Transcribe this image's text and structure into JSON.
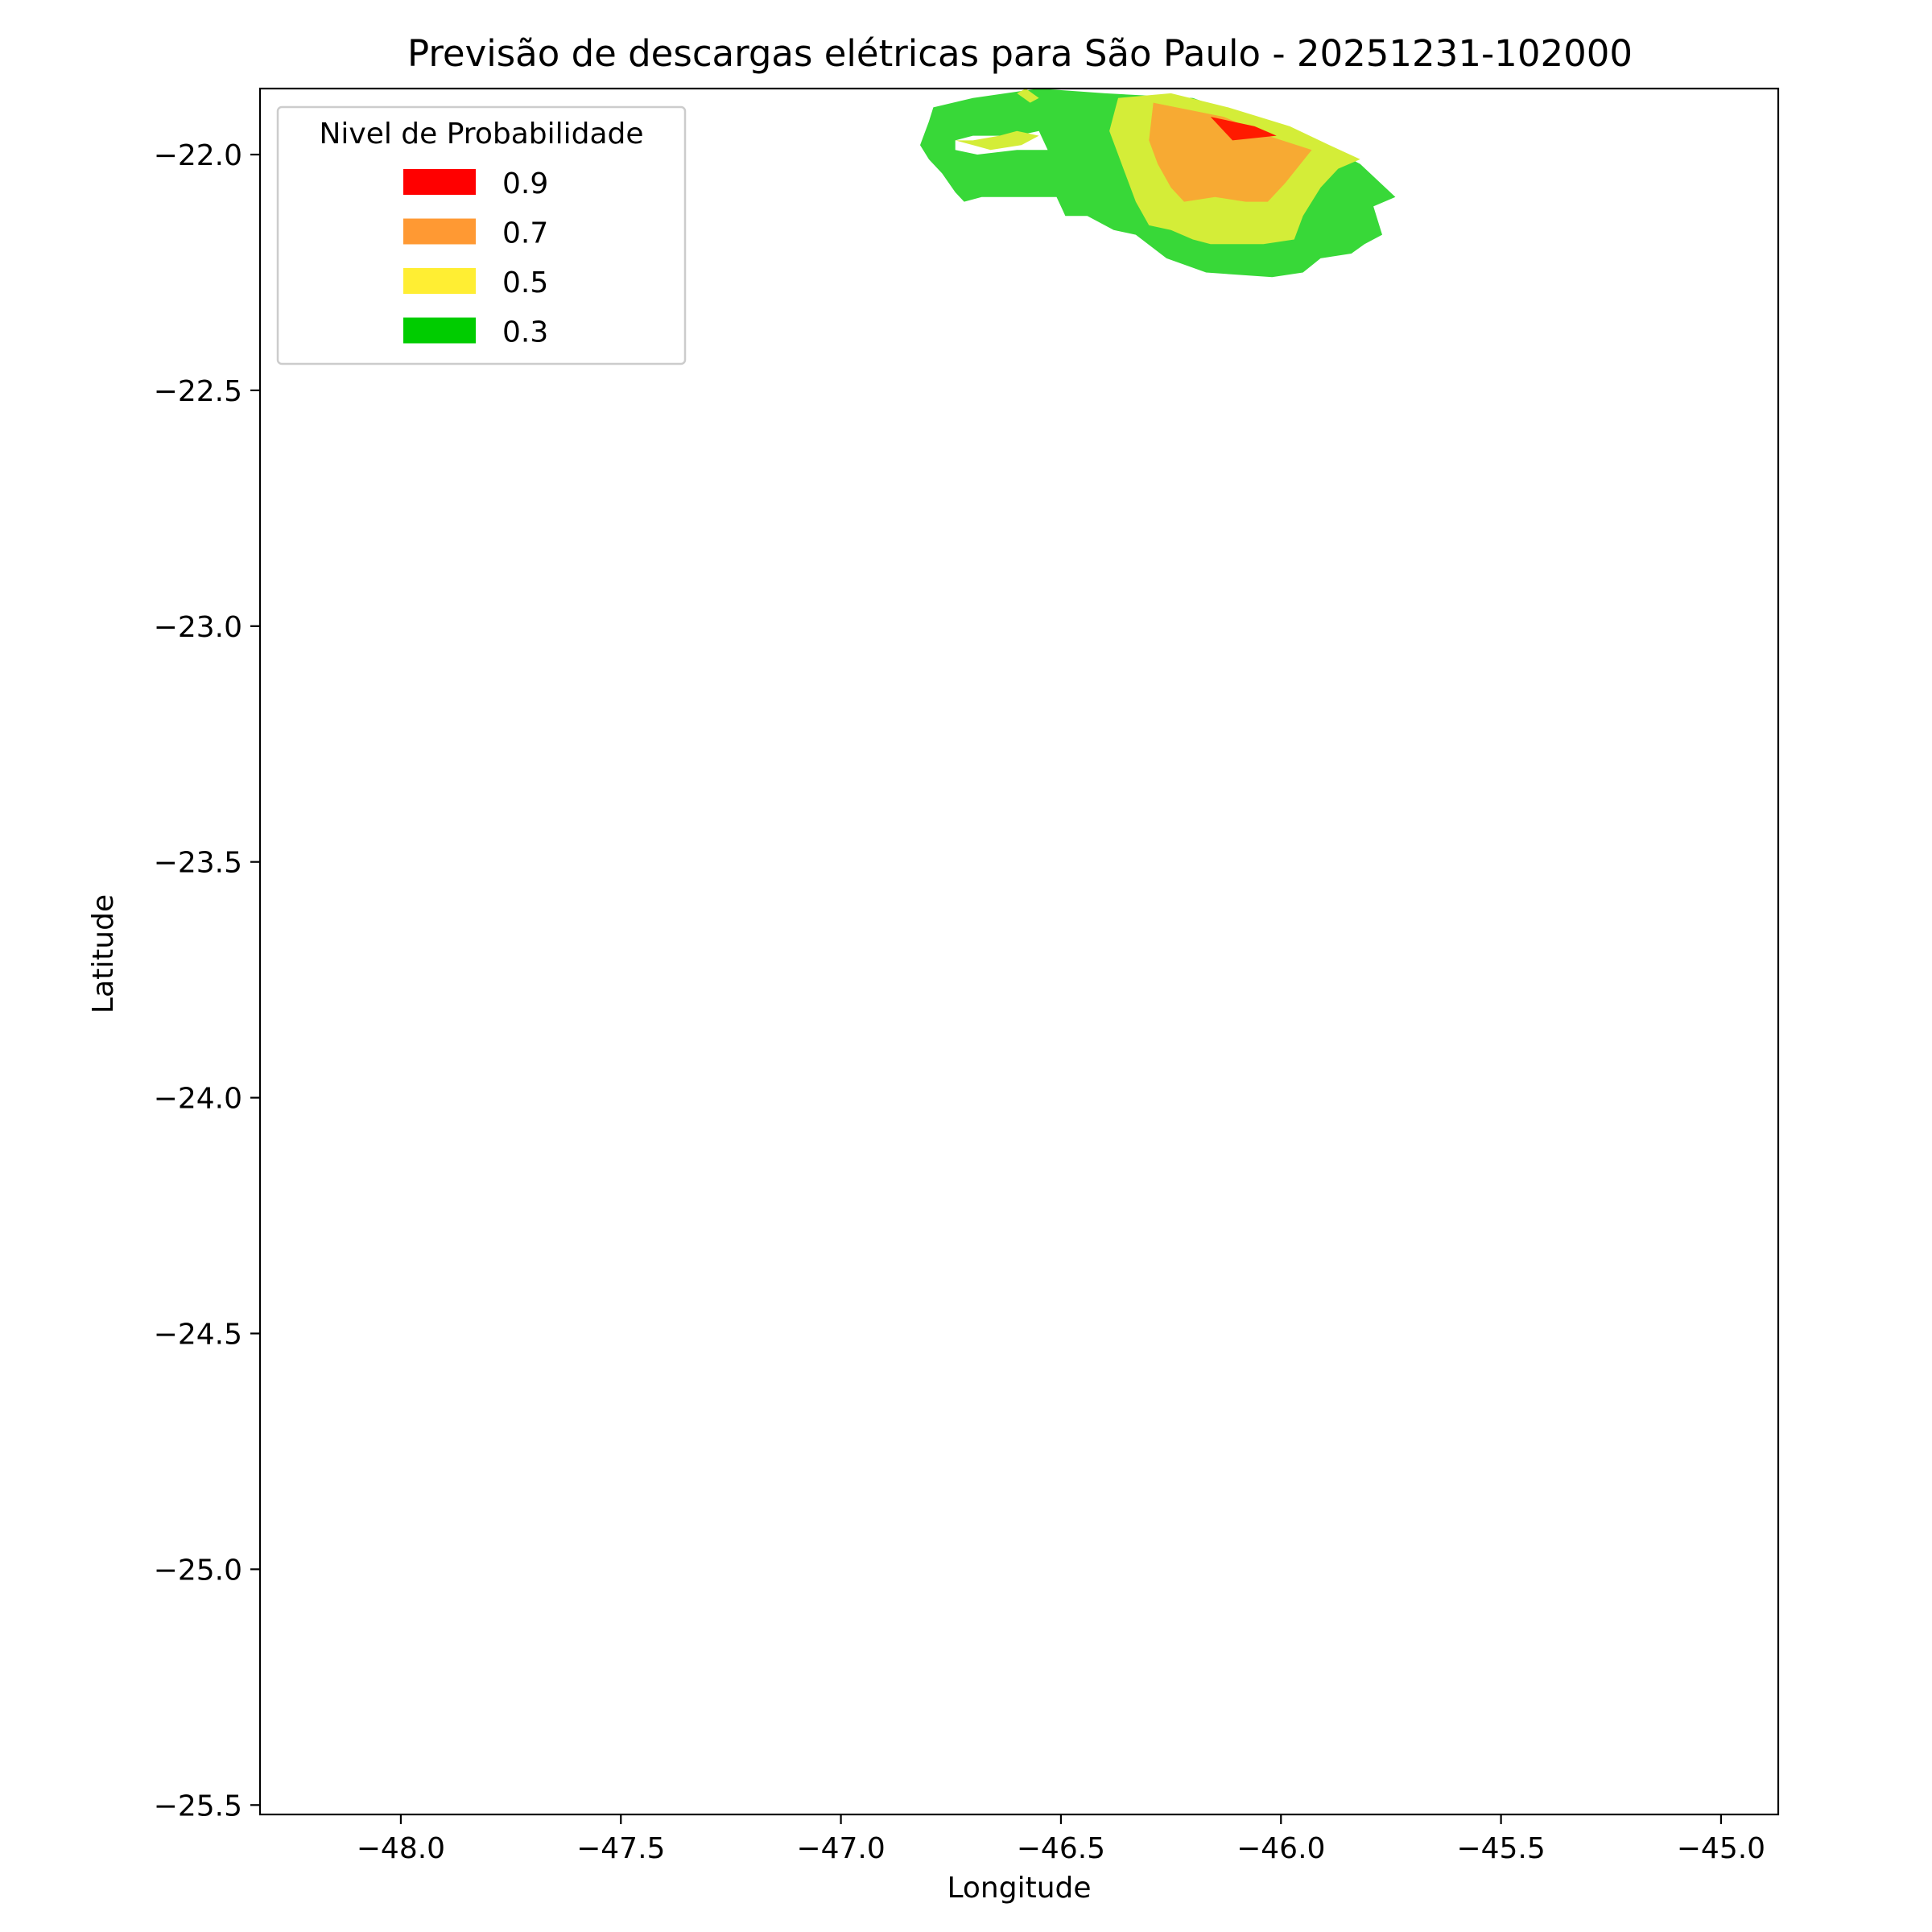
{
  "chart_data": {
    "type": "contour_map",
    "title": "Previsão de descargas elétricas para São Paulo - 20251231-102000",
    "xlabel": "Longitude",
    "ylabel": "Latitude",
    "xlim": [
      -48.32,
      -44.87
    ],
    "ylim": [
      -25.52,
      -21.86
    ],
    "x_ticks": [
      -48.0,
      -47.5,
      -47.0,
      -46.5,
      -46.0,
      -45.5,
      -45.0
    ],
    "x_tick_labels": [
      "−48.0",
      "−47.5",
      "−47.0",
      "−46.5",
      "−46.0",
      "−45.5",
      "−45.0"
    ],
    "y_ticks": [
      -22.0,
      -22.5,
      -23.0,
      -23.5,
      -24.0,
      -24.5,
      -25.0,
      -25.5
    ],
    "y_tick_labels": [
      "−22.0",
      "−22.5",
      "−23.0",
      "−23.5",
      "−24.0",
      "−24.5",
      "−25.0",
      "−25.5"
    ],
    "grid": false,
    "legend": {
      "title": "Nivel de Probabilidade",
      "placement": "top-left",
      "entries": [
        {
          "label": "0.9",
          "color": "#ff0000"
        },
        {
          "label": "0.7",
          "color": "#ff9933"
        },
        {
          "label": "0.5",
          "color": "#ffee33"
        },
        {
          "label": "0.3",
          "color": "#00cc00"
        }
      ]
    },
    "regions": [
      {
        "level": "0.3",
        "color": "#38d838",
        "polygon": [
          [
            -46.79,
            -21.9
          ],
          [
            -46.7,
            -21.88
          ],
          [
            -46.55,
            -21.86
          ],
          [
            -46.4,
            -21.87
          ],
          [
            -46.2,
            -21.88
          ],
          [
            -46.05,
            -21.93
          ],
          [
            -45.9,
            -21.98
          ],
          [
            -45.82,
            -22.02
          ],
          [
            -45.74,
            -22.09
          ],
          [
            -45.79,
            -22.11
          ],
          [
            -45.77,
            -22.17
          ],
          [
            -45.81,
            -22.19
          ],
          [
            -45.84,
            -22.21
          ],
          [
            -45.91,
            -22.22
          ],
          [
            -45.95,
            -22.25
          ],
          [
            -46.02,
            -22.26
          ],
          [
            -46.17,
            -22.25
          ],
          [
            -46.26,
            -22.22
          ],
          [
            -46.33,
            -22.17
          ],
          [
            -46.38,
            -22.16
          ],
          [
            -46.44,
            -22.13
          ],
          [
            -46.49,
            -22.13
          ],
          [
            -46.51,
            -22.09
          ],
          [
            -46.53,
            -22.09
          ],
          [
            -46.62,
            -22.09
          ],
          [
            -46.68,
            -22.09
          ],
          [
            -46.72,
            -22.1
          ],
          [
            -46.74,
            -22.08
          ],
          [
            -46.77,
            -22.04
          ],
          [
            -46.8,
            -22.01
          ],
          [
            -46.82,
            -21.98
          ],
          [
            -46.8,
            -21.93
          ]
        ],
        "holes": [
          [
            [
              -46.74,
              -21.97
            ],
            [
              -46.7,
              -21.96
            ],
            [
              -46.63,
              -21.96
            ],
            [
              -46.6,
              -21.96
            ],
            [
              -46.55,
              -21.95
            ],
            [
              -46.53,
              -21.99
            ],
            [
              -46.6,
              -21.99
            ],
            [
              -46.69,
              -22.0
            ],
            [
              -46.74,
              -21.99
            ]
          ]
        ]
      },
      {
        "level": "0.5",
        "color": "#d4ed38",
        "polygon": [
          [
            -46.37,
            -21.88
          ],
          [
            -46.25,
            -21.87
          ],
          [
            -46.12,
            -21.9
          ],
          [
            -45.98,
            -21.94
          ],
          [
            -45.89,
            -21.98
          ],
          [
            -45.82,
            -22.01
          ],
          [
            -45.87,
            -22.03
          ],
          [
            -45.91,
            -22.07
          ],
          [
            -45.95,
            -22.13
          ],
          [
            -45.97,
            -22.18
          ],
          [
            -46.04,
            -22.19
          ],
          [
            -46.12,
            -22.19
          ],
          [
            -46.16,
            -22.19
          ],
          [
            -46.2,
            -22.18
          ],
          [
            -46.25,
            -22.16
          ],
          [
            -46.3,
            -22.15
          ],
          [
            -46.33,
            -22.1
          ],
          [
            -46.35,
            -22.05
          ],
          [
            -46.37,
            -22.0
          ],
          [
            -46.39,
            -21.95
          ]
        ]
      },
      {
        "level": "0.5",
        "color": "#d4ed38",
        "polygon": [
          [
            -46.58,
            -21.86
          ],
          [
            -46.55,
            -21.88
          ],
          [
            -46.57,
            -21.89
          ],
          [
            -46.6,
            -21.87
          ]
        ]
      },
      {
        "level": "0.5",
        "color": "#d4ed38",
        "polygon": [
          [
            -46.74,
            -21.97
          ],
          [
            -46.7,
            -21.97
          ],
          [
            -46.64,
            -21.96
          ],
          [
            -46.6,
            -21.95
          ],
          [
            -46.55,
            -21.96
          ],
          [
            -46.59,
            -21.98
          ],
          [
            -46.66,
            -21.99
          ],
          [
            -46.7,
            -21.98
          ]
        ]
      },
      {
        "level": "0.7",
        "color": "#f7aa33",
        "polygon": [
          [
            -46.29,
            -21.89
          ],
          [
            -46.13,
            -21.92
          ],
          [
            -46.03,
            -21.96
          ],
          [
            -45.93,
            -21.99
          ],
          [
            -45.99,
            -22.06
          ],
          [
            -46.03,
            -22.1
          ],
          [
            -46.08,
            -22.1
          ],
          [
            -46.15,
            -22.09
          ],
          [
            -46.22,
            -22.1
          ],
          [
            -46.25,
            -22.07
          ],
          [
            -46.28,
            -22.02
          ],
          [
            -46.3,
            -21.97
          ]
        ]
      },
      {
        "level": "0.9",
        "color": "#ff1a00",
        "polygon": [
          [
            -46.16,
            -21.92
          ],
          [
            -46.06,
            -21.94
          ],
          [
            -46.01,
            -21.96
          ],
          [
            -46.11,
            -21.97
          ]
        ]
      }
    ]
  }
}
